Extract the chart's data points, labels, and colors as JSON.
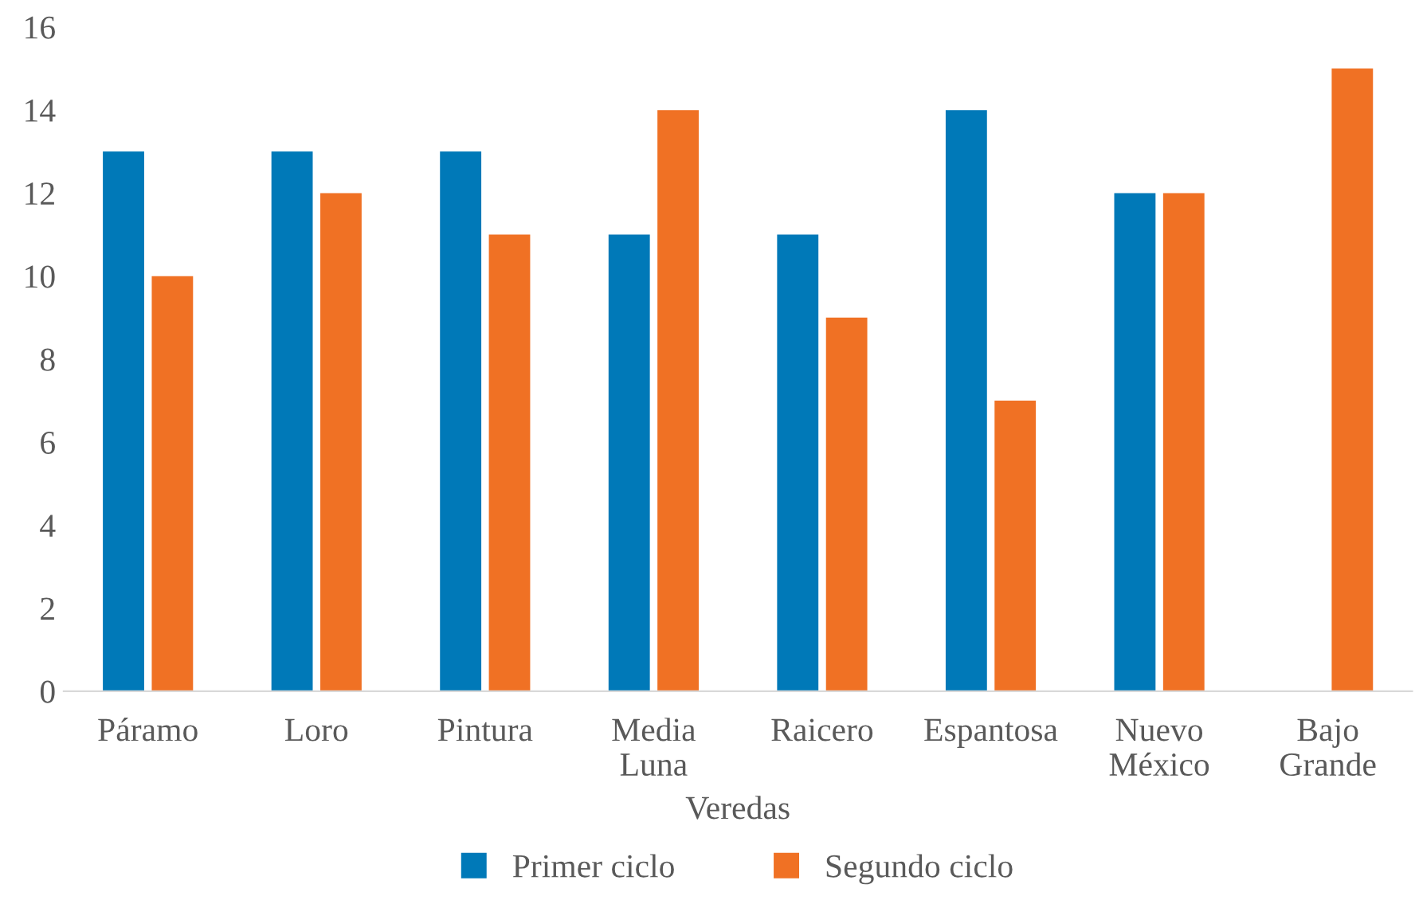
{
  "chart_data": {
    "type": "bar",
    "xlabel": "Veredas",
    "categories": [
      "Páramo",
      "Loro",
      "Pintura",
      "Media Luna",
      "Raicero",
      "Espantosa",
      "Nuevo México",
      "Bajo Grande"
    ],
    "series": [
      {
        "name": "Primer ciclo",
        "color": "#0079b8",
        "values": [
          13,
          13,
          13,
          11,
          11,
          14,
          12,
          null
        ]
      },
      {
        "name": "Segundo ciclo",
        "color": "#f07124",
        "values": [
          10,
          12,
          11,
          14,
          9,
          7,
          12,
          15
        ]
      }
    ],
    "ylim": [
      0,
      16
    ],
    "yticks": [
      0,
      2,
      4,
      6,
      8,
      10,
      12,
      14,
      16
    ],
    "grid": false,
    "legend": "bottom"
  }
}
